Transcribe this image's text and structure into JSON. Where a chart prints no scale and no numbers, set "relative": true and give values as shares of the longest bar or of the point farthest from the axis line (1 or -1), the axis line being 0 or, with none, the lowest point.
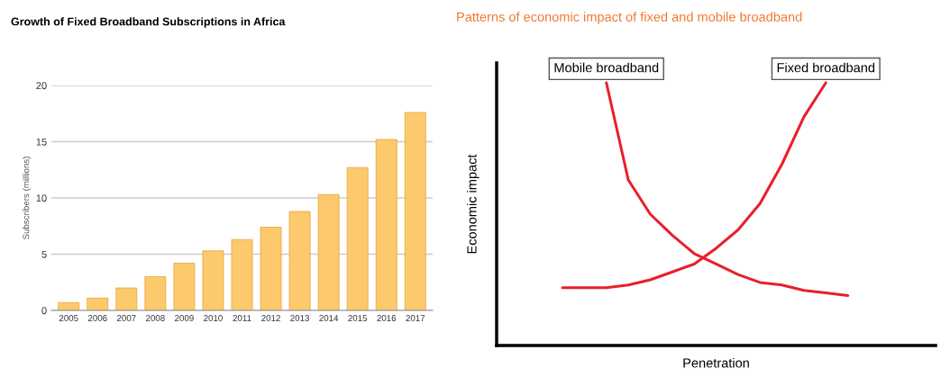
{
  "chart_data": [
    {
      "type": "bar",
      "title": "Growth of Fixed Broadband Subscriptions in Africa",
      "ylabel": "Subscribers (millions)",
      "categories": [
        "2005",
        "2006",
        "2007",
        "2008",
        "2009",
        "2010",
        "2011",
        "2012",
        "2013",
        "2014",
        "2015",
        "2016",
        "2017"
      ],
      "values": [
        0.7,
        1.1,
        2.0,
        3.0,
        4.2,
        5.3,
        6.3,
        7.4,
        8.8,
        10.3,
        12.7,
        15.2,
        17.6
      ],
      "color": "#fdc96d",
      "ylim": [
        0,
        20
      ],
      "yticks": [
        0,
        5,
        10,
        15,
        20
      ],
      "grid": "y"
    },
    {
      "type": "line",
      "title": "Patterns of economic impact of fixed and mobile broadband",
      "xlabel": "Penetration",
      "ylabel": "Economic impact",
      "relative": true,
      "categories": [
        null,
        null,
        null,
        null,
        null,
        null,
        null,
        null,
        null,
        null,
        null,
        null,
        null,
        null,
        null,
        null,
        null,
        null,
        null,
        null,
        null
      ],
      "series": [
        {
          "name": "Mobile broadband",
          "color": "#e8202a",
          "values": [
            null,
            null,
            null,
            null,
            null,
            1.0,
            0.63,
            0.5,
            0.42,
            0.35,
            0.31,
            0.27,
            0.24,
            0.23,
            0.21,
            0.2,
            0.19,
            null,
            null,
            null,
            null
          ]
        },
        {
          "name": "Fixed broadband",
          "color": "#e8202a",
          "values": [
            null,
            null,
            null,
            0.22,
            0.22,
            0.22,
            0.23,
            0.25,
            0.28,
            0.31,
            0.37,
            0.44,
            0.54,
            0.69,
            0.87,
            1.0,
            null,
            null,
            null,
            null,
            null
          ]
        }
      ],
      "tick_labels": false,
      "legend": false
    }
  ]
}
